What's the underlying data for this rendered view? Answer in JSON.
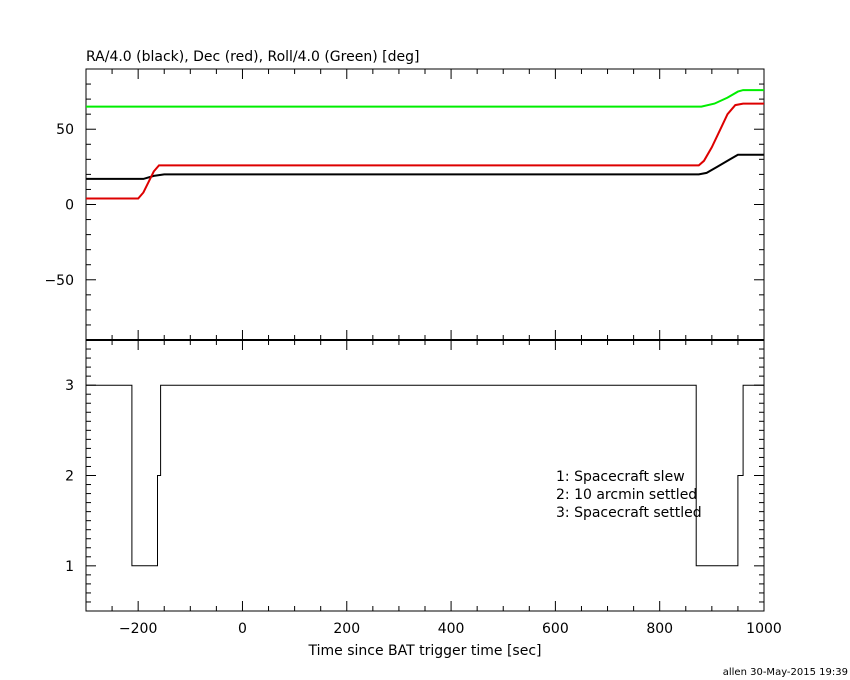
{
  "chart_data": [
    {
      "type": "line",
      "title": "RA/4.0 (black), Dec (red), Roll/4.0 (Green) [deg]",
      "xlim": [
        -300,
        1000
      ],
      "ylim": [
        -90,
        90
      ],
      "yticks": [
        -50,
        0,
        50
      ],
      "ytick_labels": [
        "−50",
        "0",
        "50"
      ],
      "grid": false,
      "series": [
        {
          "color": "#000000",
          "x": [
            -300,
            -190,
            -170,
            -150,
            370,
            875,
            890,
            910,
            935,
            950,
            1000
          ],
          "y": [
            17,
            17,
            19,
            20,
            20,
            20,
            21,
            25,
            30,
            33,
            33
          ]
        },
        {
          "color": "#dd0000",
          "x": [
            -300,
            -200,
            -190,
            -180,
            -170,
            -160,
            370,
            875,
            885,
            900,
            915,
            930,
            945,
            960,
            1000
          ],
          "y": [
            4,
            4,
            8,
            15,
            22,
            26,
            26,
            26,
            29,
            38,
            49,
            60,
            66,
            67,
            67
          ]
        },
        {
          "color": "#00ee00",
          "x": [
            -300,
            370,
            880,
            905,
            930,
            950,
            960,
            1000
          ],
          "y": [
            65,
            65,
            65,
            67,
            71,
            75,
            76,
            76
          ]
        }
      ]
    },
    {
      "type": "line",
      "xlabel": "Time since BAT trigger time [sec]",
      "xlim": [
        -300,
        1000
      ],
      "ylim": [
        0.5,
        3.5
      ],
      "xticks": [
        -200,
        0,
        200,
        400,
        600,
        800,
        1000
      ],
      "xtick_labels": [
        "−200",
        "0",
        "200",
        "400",
        "600",
        "800",
        "1000"
      ],
      "yticks": [
        1,
        2,
        3
      ],
      "ytick_labels": [
        "1",
        "2",
        "3"
      ],
      "legend": [
        "1: Spacecraft slew",
        "2: 10 arcmin settled",
        "3: Spacecraft settled"
      ],
      "legend_position": "right",
      "grid": false,
      "series": [
        {
          "color": "#000000",
          "x": [
            -300,
            -212,
            -212,
            -163,
            -163,
            -157,
            -157,
            870,
            870,
            950,
            950,
            960,
            960,
            1000
          ],
          "y": [
            3,
            3,
            1,
            1,
            2,
            2,
            3,
            3,
            1,
            1,
            2,
            2,
            3,
            3
          ]
        }
      ]
    }
  ],
  "footer": "allen 30-May-2015 19:39"
}
